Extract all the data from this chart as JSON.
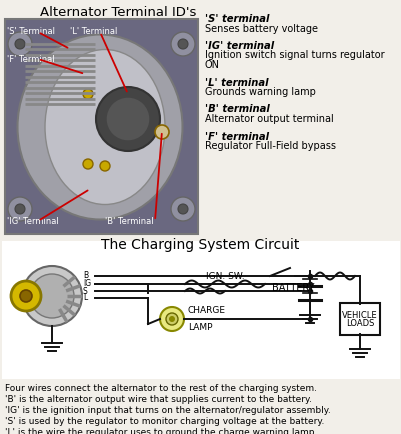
{
  "bg_color": "#f2efe9",
  "title_top": "Alternator Terminal ID's",
  "title_mid": "The Charging System Circuit",
  "right_text": [
    [
      "'S' terminal",
      "Senses battery voltage"
    ],
    [
      "'IG' terminal",
      "Ignition switch signal turns regulator",
      "ON"
    ],
    [
      "'L' terminal",
      "Grounds warning lamp"
    ],
    [
      "'B' terminal",
      "Alternator output terminal"
    ],
    [
      "'F' terminal",
      "Regulator Full-Field bypass"
    ]
  ],
  "bottom_text": [
    "Four wires connect the alternator to the rest of the charging system.",
    "'B' is the alternator output wire that supplies current to the battery.",
    "'IG' is the ignition input that turns on the alternator/regulator assembly.",
    "'S' is used by the regulator to monitor charging voltage at the battery.",
    "'L' is the wire the regulator uses to ground the charge warning lamp."
  ],
  "photo_bg": "#6a6880",
  "photo_alt_color": "#c8c8c8",
  "wire_color": "#111111",
  "red_color": "#cc0000",
  "alt_gray": "#b8b8b8",
  "pulley_yellow": "#d4b800",
  "lamp_yellow": "#e8e880"
}
